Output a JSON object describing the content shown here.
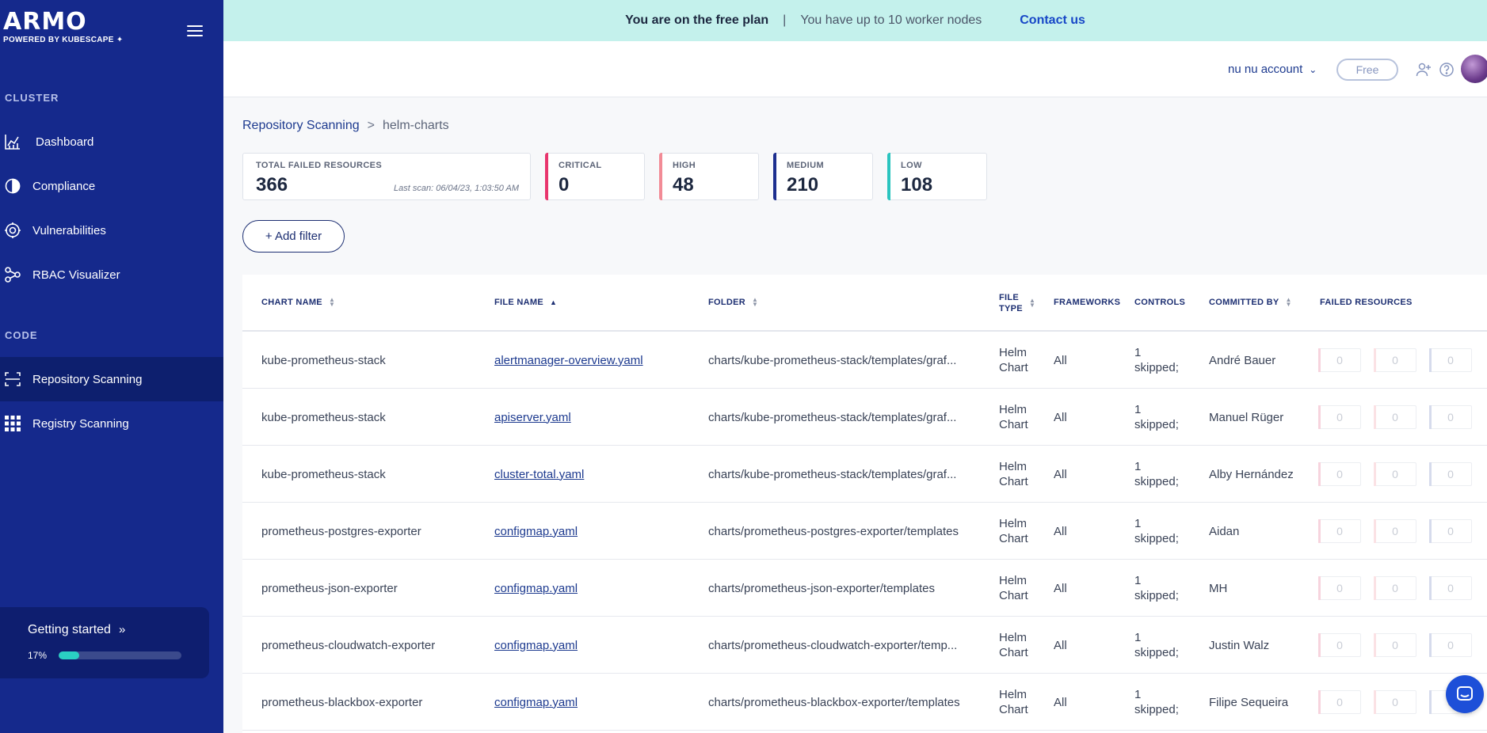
{
  "sidebar": {
    "logo": "ARMO",
    "logo_sub": "POWERED BY KUBESCAPE",
    "sections": {
      "cluster": "CLUSTER",
      "code": "CODE"
    },
    "items": [
      {
        "label": "Dashboard",
        "icon": "chart-icon"
      },
      {
        "label": "Compliance",
        "icon": "compliance-icon"
      },
      {
        "label": "Vulnerabilities",
        "icon": "vulnerabilities-icon"
      },
      {
        "label": "RBAC Visualizer",
        "icon": "rbac-icon"
      },
      {
        "label": "Repository Scanning",
        "icon": "repository-icon",
        "active": true
      },
      {
        "label": "Registry Scanning",
        "icon": "registry-icon"
      }
    ],
    "getting_started": {
      "title": "Getting started",
      "percent_label": "17%",
      "progress": 0.17
    }
  },
  "banner": {
    "bold": "You are on the free plan",
    "separator": "|",
    "text": "You have up to 10 worker nodes",
    "link": "Contact us"
  },
  "header": {
    "account": "nu nu account",
    "plan_button": "Free"
  },
  "breadcrumb": {
    "parent": "Repository Scanning",
    "separator": ">",
    "current": "helm-charts"
  },
  "stats": {
    "total": {
      "label": "TOTAL FAILED RESOURCES",
      "value": "366",
      "note": "Last scan: 06/04/23, 1:03:50 AM"
    },
    "critical": {
      "label": "CRITICAL",
      "value": "0",
      "color": "#e8356d"
    },
    "high": {
      "label": "HIGH",
      "value": "48",
      "color": "#f28b96"
    },
    "medium": {
      "label": "MEDIUM",
      "value": "210",
      "color": "#1d2f8f"
    },
    "low": {
      "label": "LOW",
      "value": "108",
      "color": "#2ac4bf"
    }
  },
  "filter": {
    "add_label": "+ Add filter"
  },
  "table": {
    "columns": {
      "chart_name": "CHART NAME",
      "file_name": "FILE NAME",
      "folder": "FOLDER",
      "file_type_1": "FILE",
      "file_type_2": "TYPE",
      "frameworks": "FRAMEWORKS",
      "controls": "CONTROLS",
      "committed_by": "COMMITTED BY",
      "failed_resources": "FAILED RESOURCES"
    },
    "rows": [
      {
        "chart": "kube-prometheus-stack",
        "file": "alertmanager-overview.yaml",
        "folder": "charts/kube-prometheus-stack/templates/graf...",
        "type1": "Helm",
        "type2": "Chart",
        "frameworks": "All",
        "ctrl1": "1",
        "ctrl2": "skipped;",
        "committer": "André Bauer",
        "f1": "0",
        "f2": "0",
        "f3": "0"
      },
      {
        "chart": "kube-prometheus-stack",
        "file": "apiserver.yaml",
        "folder": "charts/kube-prometheus-stack/templates/graf...",
        "type1": "Helm",
        "type2": "Chart",
        "frameworks": "All",
        "ctrl1": "1",
        "ctrl2": "skipped;",
        "committer": "Manuel Rüger",
        "f1": "0",
        "f2": "0",
        "f3": "0"
      },
      {
        "chart": "kube-prometheus-stack",
        "file": "cluster-total.yaml",
        "folder": "charts/kube-prometheus-stack/templates/graf...",
        "type1": "Helm",
        "type2": "Chart",
        "frameworks": "All",
        "ctrl1": "1",
        "ctrl2": "skipped;",
        "committer": "Alby Hernández",
        "f1": "0",
        "f2": "0",
        "f3": "0"
      },
      {
        "chart": "prometheus-postgres-exporter",
        "file": "configmap.yaml",
        "folder": "charts/prometheus-postgres-exporter/templates",
        "type1": "Helm",
        "type2": "Chart",
        "frameworks": "All",
        "ctrl1": "1",
        "ctrl2": "skipped;",
        "committer": "Aidan",
        "f1": "0",
        "f2": "0",
        "f3": "0"
      },
      {
        "chart": "prometheus-json-exporter",
        "file": "configmap.yaml",
        "folder": "charts/prometheus-json-exporter/templates",
        "type1": "Helm",
        "type2": "Chart",
        "frameworks": "All",
        "ctrl1": "1",
        "ctrl2": "skipped;",
        "committer": "MH",
        "f1": "0",
        "f2": "0",
        "f3": "0"
      },
      {
        "chart": "prometheus-cloudwatch-exporter",
        "file": "configmap.yaml",
        "folder": "charts/prometheus-cloudwatch-exporter/temp...",
        "type1": "Helm",
        "type2": "Chart",
        "frameworks": "All",
        "ctrl1": "1",
        "ctrl2": "skipped;",
        "committer": "Justin Walz",
        "f1": "0",
        "f2": "0",
        "f3": "0"
      },
      {
        "chart": "prometheus-blackbox-exporter",
        "file": "configmap.yaml",
        "folder": "charts/prometheus-blackbox-exporter/templates",
        "type1": "Helm",
        "type2": "Chart",
        "frameworks": "All",
        "ctrl1": "1",
        "ctrl2": "skipped;",
        "committer": "Filipe Sequeira",
        "f1": "0",
        "f2": "0",
        "f3": "0"
      }
    ]
  }
}
